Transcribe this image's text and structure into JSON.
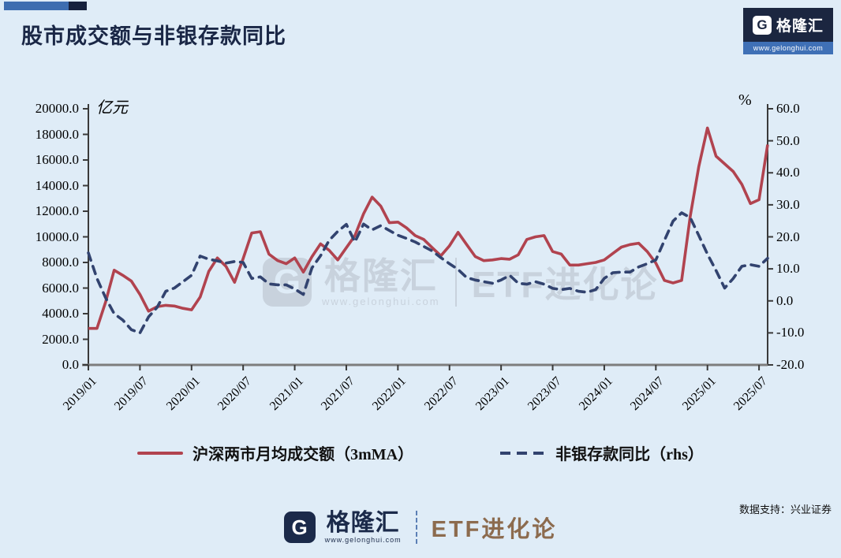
{
  "header": {
    "title": "股市成交额与非银存款同比"
  },
  "top_logo": {
    "g": "G",
    "brand": "格隆汇",
    "url": "www.gelonghui.com"
  },
  "watermark": {
    "g": "G",
    "brand": "格隆汇",
    "url": "www.gelonghui.com",
    "right": "ETF进化论"
  },
  "footer": {
    "g": "G",
    "brand": "格隆汇",
    "url": "www.gelonghui.com",
    "etf": "ETF进化论",
    "support": "数据支持：兴业证券"
  },
  "chart_data": {
    "type": "line",
    "title": "股市成交额与非银存款同比",
    "left_axis_label": "亿元",
    "right_axis_label": "%",
    "ylim_left": [
      0,
      20000
    ],
    "ylim_right": [
      -20,
      60
    ],
    "grid": false,
    "legend_position": "bottom",
    "left_ticks": [
      "20000.0",
      "18000.0",
      "16000.0",
      "14000.0",
      "12000.0",
      "10000.0",
      "8000.0",
      "6000.0",
      "4000.0",
      "2000.0",
      "0.0"
    ],
    "right_ticks": [
      "60.0",
      "50.0",
      "40.0",
      "30.0",
      "20.0",
      "10.0",
      "0.0",
      "-10.0",
      "-20.0"
    ],
    "x_tick_labels": [
      "2019/01",
      "2019/07",
      "2020/01",
      "2020/07",
      "2021/01",
      "2021/07",
      "2022/01",
      "2022/07",
      "2023/01",
      "2023/07",
      "2024/01",
      "2024/07",
      "2025/01",
      "2025/07"
    ],
    "x_tick_indices": [
      0,
      6,
      12,
      18,
      24,
      30,
      36,
      42,
      48,
      54,
      60,
      66,
      72,
      78
    ],
    "months": [
      "2019/01",
      "2019/02",
      "2019/03",
      "2019/04",
      "2019/05",
      "2019/06",
      "2019/07",
      "2019/08",
      "2019/09",
      "2019/10",
      "2019/11",
      "2019/12",
      "2020/01",
      "2020/02",
      "2020/03",
      "2020/04",
      "2020/05",
      "2020/06",
      "2020/07",
      "2020/08",
      "2020/09",
      "2020/10",
      "2020/11",
      "2020/12",
      "2021/01",
      "2021/02",
      "2021/03",
      "2021/04",
      "2021/05",
      "2021/06",
      "2021/07",
      "2021/08",
      "2021/09",
      "2021/10",
      "2021/11",
      "2021/12",
      "2022/01",
      "2022/02",
      "2022/03",
      "2022/04",
      "2022/05",
      "2022/06",
      "2022/07",
      "2022/08",
      "2022/09",
      "2022/10",
      "2022/11",
      "2022/12",
      "2023/01",
      "2023/02",
      "2023/03",
      "2023/04",
      "2023/05",
      "2023/06",
      "2023/07",
      "2023/08",
      "2023/09",
      "2023/10",
      "2023/11",
      "2023/12",
      "2024/01",
      "2024/02",
      "2024/03",
      "2024/04",
      "2024/05",
      "2024/06",
      "2024/07",
      "2024/08",
      "2024/09",
      "2024/10",
      "2024/11",
      "2024/12",
      "2025/01",
      "2025/02",
      "2025/03",
      "2025/04",
      "2025/05",
      "2025/06",
      "2025/07",
      "2025/08"
    ],
    "series": [
      {
        "name": "沪深两市月均成交额（3mMA）",
        "axis": "left",
        "style": "solid",
        "color": "#b1434f",
        "values": [
          2850,
          2850,
          4900,
          7400,
          7000,
          6550,
          5500,
          4200,
          4550,
          4650,
          4600,
          4420,
          4300,
          5300,
          7300,
          8350,
          7700,
          6450,
          8300,
          10300,
          10400,
          8650,
          8150,
          7900,
          8350,
          7250,
          8450,
          9450,
          8950,
          8200,
          9150,
          10100,
          11800,
          13100,
          12400,
          11100,
          11150,
          10700,
          10100,
          9800,
          9150,
          8520,
          9300,
          10350,
          9400,
          8460,
          8140,
          8200,
          8300,
          8250,
          8600,
          9800,
          10000,
          10100,
          8850,
          8650,
          7800,
          7800,
          7900,
          8000,
          8200,
          8700,
          9200,
          9400,
          9500,
          8850,
          7950,
          6600,
          6400,
          6600,
          11600,
          15500,
          18500,
          16300,
          15700,
          15100,
          14100,
          12600,
          12900,
          17200
        ]
      },
      {
        "name": "非银存款同比（rhs）",
        "axis": "right",
        "style": "dashed",
        "color": "#32436f",
        "values": [
          15.0,
          7.0,
          1.0,
          -4.0,
          -6.0,
          -9.0,
          -10.0,
          -5.0,
          -2.0,
          3.0,
          4.0,
          6.0,
          8.0,
          14.0,
          13.0,
          12.5,
          11.8,
          12.3,
          12.0,
          7.0,
          7.5,
          5.3,
          5.0,
          5.0,
          3.7,
          2.0,
          10.3,
          14.1,
          18.9,
          21.7,
          23.9,
          18.4,
          24.0,
          22.2,
          23.5,
          22.0,
          20.5,
          19.5,
          18.4,
          17.0,
          15.6,
          13.5,
          11.6,
          9.8,
          7.3,
          6.5,
          6.0,
          5.5,
          6.5,
          8.0,
          5.5,
          5.2,
          6.0,
          5.2,
          3.9,
          3.5,
          3.9,
          3.0,
          2.7,
          3.5,
          7.0,
          8.8,
          9.0,
          9.0,
          10.6,
          11.6,
          12.8,
          18.9,
          24.9,
          27.5,
          26.0,
          20.4,
          14.6,
          9.5,
          4.0,
          7.0,
          10.8,
          11.3,
          10.8,
          13.3
        ]
      }
    ],
    "colors": {
      "background": "#dfecf7",
      "title": "#1a2746",
      "axis_line": "#3a3a3a",
      "baseline": "#7d7d7d",
      "brown": "#8c6b4e",
      "logo_navy": "#1b2640",
      "logo_blue": "#3f70b6",
      "watermark": "#b7bec8"
    }
  }
}
